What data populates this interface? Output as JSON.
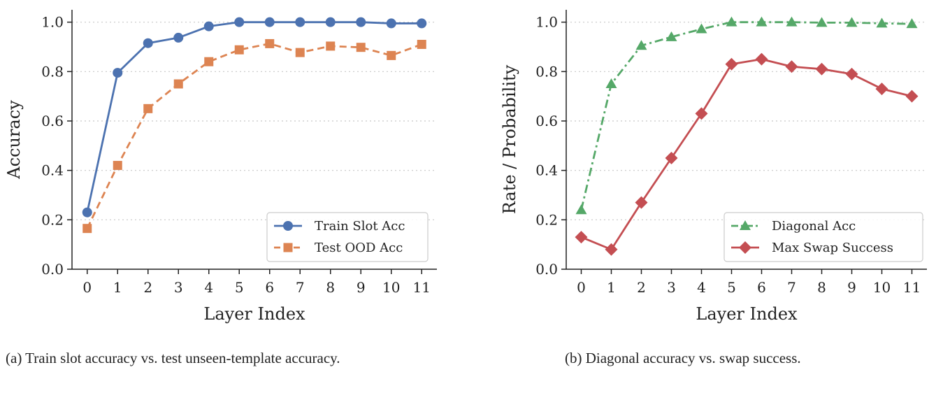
{
  "chart_data": [
    {
      "type": "line",
      "xlabel": "Layer Index",
      "ylabel": "Accuracy",
      "x": [
        0,
        1,
        2,
        3,
        4,
        5,
        6,
        7,
        8,
        9,
        10,
        11
      ],
      "ylim": [
        0,
        1.05
      ],
      "yticks": [
        "0.0",
        "0.2",
        "0.4",
        "0.6",
        "0.8",
        "1.0"
      ],
      "grid": "horizontal-dotted",
      "legend_position": "lower-right",
      "caption": "(a) Train slot accuracy vs. test unseen-template accuracy.",
      "series": [
        {
          "name": "Train Slot Acc",
          "color": "#4c72b0",
          "marker": "circle",
          "dash": "solid",
          "values": [
            0.23,
            0.795,
            0.915,
            0.937,
            0.983,
            1.0,
            1.0,
            1.0,
            1.0,
            1.0,
            0.995,
            0.995
          ]
        },
        {
          "name": "Test OOD Acc",
          "color": "#dd8452",
          "marker": "square",
          "dash": "dashed",
          "values": [
            0.165,
            0.42,
            0.65,
            0.75,
            0.84,
            0.888,
            0.913,
            0.877,
            0.903,
            0.898,
            0.865,
            0.91
          ]
        }
      ]
    },
    {
      "type": "line",
      "xlabel": "Layer Index",
      "ylabel": "Rate / Probability",
      "x": [
        0,
        1,
        2,
        3,
        4,
        5,
        6,
        7,
        8,
        9,
        10,
        11
      ],
      "ylim": [
        0,
        1.05
      ],
      "yticks": [
        "0.0",
        "0.2",
        "0.4",
        "0.6",
        "0.8",
        "1.0"
      ],
      "grid": "horizontal-dotted",
      "legend_position": "lower-right",
      "caption": "(b) Diagonal accuracy vs. swap success.",
      "series": [
        {
          "name": "Diagonal Acc",
          "color": "#55a868",
          "marker": "triangle",
          "dash": "dashdot",
          "values": [
            0.24,
            0.75,
            0.905,
            0.94,
            0.972,
            1.0,
            1.0,
            1.0,
            0.998,
            0.998,
            0.995,
            0.993
          ]
        },
        {
          "name": "Max Swap Success",
          "color": "#c44e52",
          "marker": "diamond",
          "dash": "solid",
          "values": [
            0.13,
            0.08,
            0.27,
            0.45,
            0.63,
            0.83,
            0.85,
            0.82,
            0.81,
            0.79,
            0.73,
            0.7
          ]
        }
      ]
    }
  ]
}
